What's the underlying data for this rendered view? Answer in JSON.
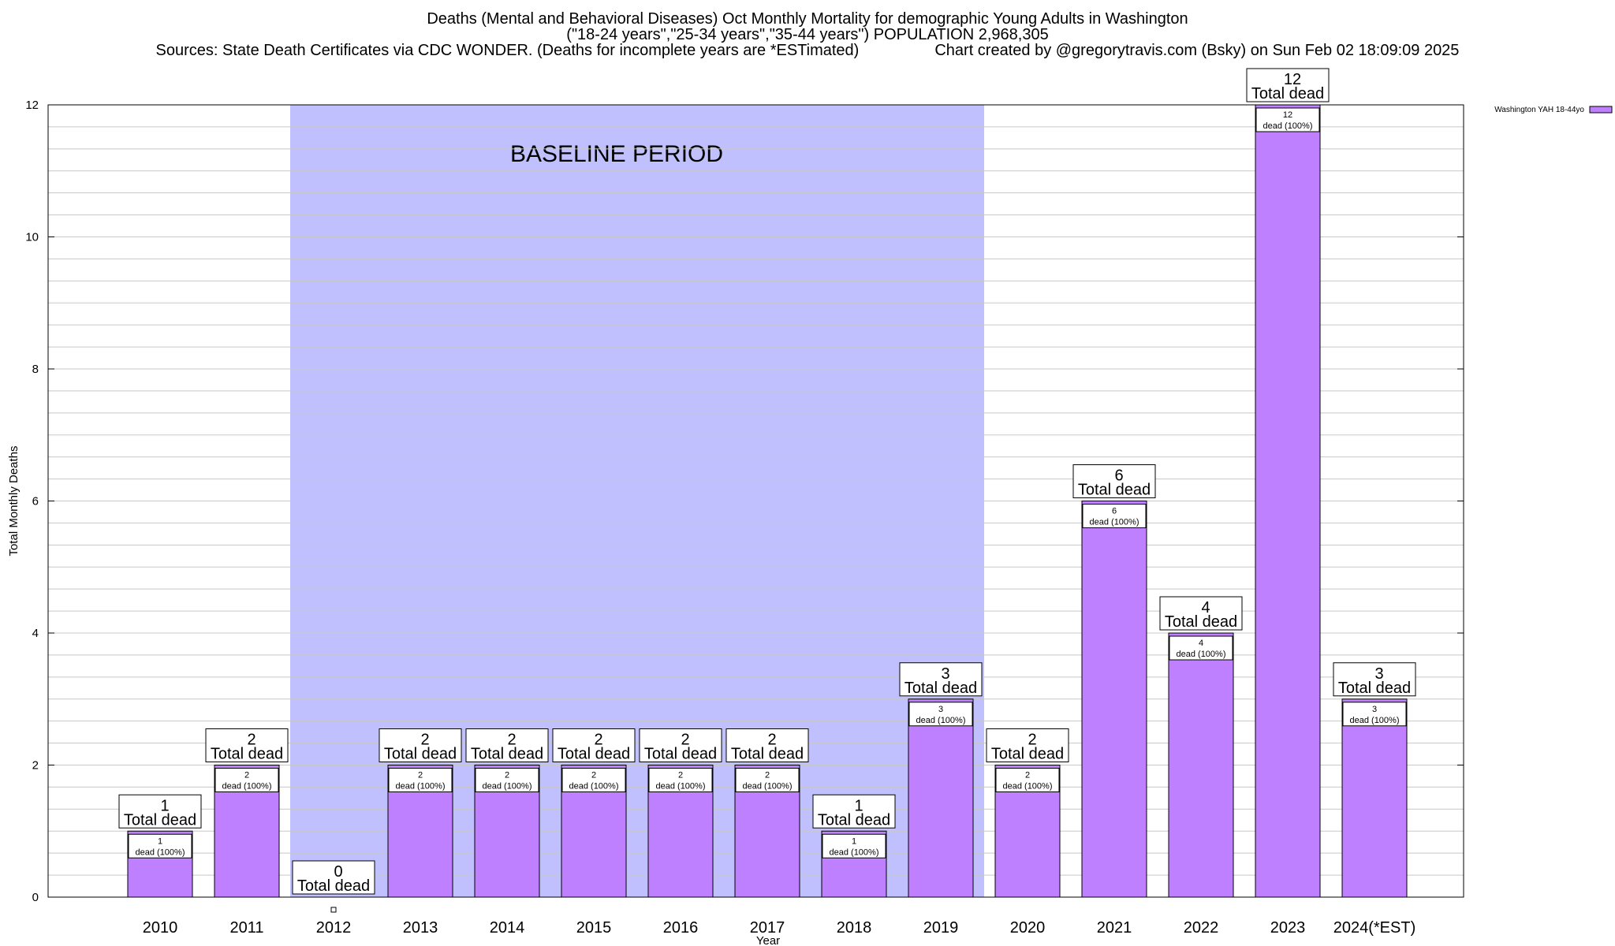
{
  "chart_data": {
    "type": "bar",
    "title": "Deaths (Mental and Behavioral Diseases) Oct Monthly Mortality for demographic Young Adults in Washington",
    "subtitle": "(\"18-24 years\",\"25-34 years\",\"35-44 years\") POPULATION 2,968,305",
    "sources": "Sources: State Death Certificates via CDC WONDER. (Deaths for incomplete years are *ESTimated)",
    "credit": "Chart created by @gregorytravis.com (Bsky) on Sun Feb 02 18:09:09 2025",
    "xlabel": "Year",
    "ylabel": "Total Monthly Deaths",
    "ylim": [
      0,
      12
    ],
    "yticks": [
      0,
      2,
      4,
      6,
      8,
      10,
      12
    ],
    "grid": true,
    "legend_position": "top-right",
    "categories": [
      "2010",
      "2011",
      "2012",
      "2013",
      "2014",
      "2015",
      "2016",
      "2017",
      "2018",
      "2019",
      "2020",
      "2021",
      "2022",
      "2023",
      "2024(*EST)"
    ],
    "series": [
      {
        "name": "Washington YAH 18-44yo",
        "color": "#bf80ff",
        "values": [
          1,
          2,
          0,
          2,
          2,
          2,
          2,
          2,
          1,
          3,
          2,
          6,
          4,
          12,
          3
        ]
      }
    ],
    "top_label_text": "Total dead",
    "inner_label_text": "dead (100%)",
    "baseline_band": {
      "label": "BASELINE PERIOD",
      "from": "2012",
      "to": "2019",
      "color": "#c0c0ff"
    }
  }
}
